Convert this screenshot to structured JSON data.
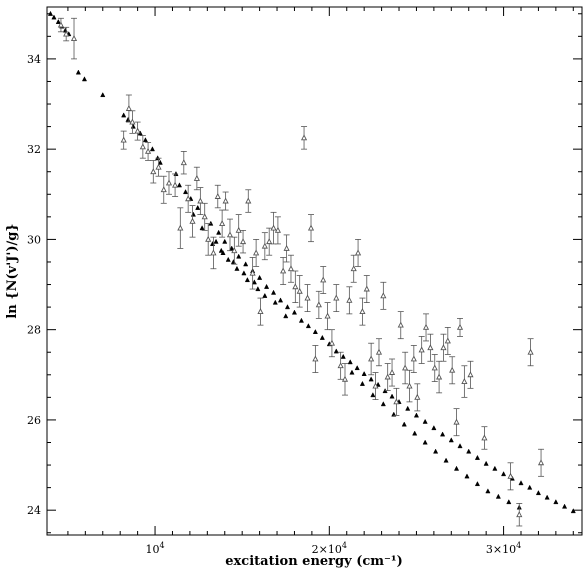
{
  "chart_data": {
    "type": "scatter",
    "title": "",
    "xlabel": "excitation energy (cm⁻¹)",
    "ylabel": "ln {N(v'J')/g}",
    "xlim": [
      3800,
      34500
    ],
    "ylim": [
      23.45,
      35.15
    ],
    "grid": false,
    "x_ticks": [
      {
        "value": 10000,
        "base": "10",
        "exp": "4"
      },
      {
        "value": 20000,
        "base": "2×10",
        "exp": "4"
      },
      {
        "value": 30000,
        "base": "3×10",
        "exp": "4"
      }
    ],
    "y_ticks": [
      {
        "value": 24,
        "label": "24"
      },
      {
        "value": 26,
        "label": "26"
      },
      {
        "value": 28,
        "label": "28"
      },
      {
        "value": 30,
        "label": "30"
      },
      {
        "value": 32,
        "label": "32"
      },
      {
        "value": 34,
        "label": "34"
      }
    ],
    "series": [
      {
        "marker": "filled-triangle",
        "color": "#000000",
        "points": [
          [
            4000,
            35.0
          ],
          [
            4200,
            34.92
          ],
          [
            4450,
            34.82
          ],
          [
            4650,
            34.72
          ],
          [
            4850,
            34.63
          ],
          [
            5050,
            34.55
          ],
          [
            5600,
            33.7
          ],
          [
            5950,
            33.55
          ],
          [
            7000,
            33.2
          ],
          [
            8200,
            32.75
          ],
          [
            8450,
            32.65
          ],
          [
            8750,
            32.5
          ],
          [
            9150,
            32.35
          ],
          [
            9450,
            32.2
          ],
          [
            9850,
            32.0
          ],
          [
            10150,
            31.8
          ],
          [
            11400,
            31.2
          ],
          [
            11750,
            31.05
          ],
          [
            12050,
            30.9
          ],
          [
            12450,
            30.7
          ],
          [
            12850,
            30.5
          ],
          [
            13200,
            30.35
          ],
          [
            13650,
            30.15
          ],
          [
            14000,
            29.95
          ],
          [
            14400,
            29.8
          ],
          [
            14800,
            29.62
          ],
          [
            15200,
            29.45
          ],
          [
            15600,
            29.3
          ],
          [
            16000,
            29.15
          ],
          [
            16400,
            28.95
          ],
          [
            16800,
            28.82
          ],
          [
            17200,
            28.65
          ],
          [
            17600,
            28.5
          ],
          [
            18000,
            28.38
          ],
          [
            18400,
            28.2
          ],
          [
            18800,
            28.08
          ],
          [
            19200,
            27.95
          ],
          [
            19600,
            27.82
          ],
          [
            20000,
            27.68
          ],
          [
            20400,
            27.52
          ],
          [
            20800,
            27.4
          ],
          [
            21200,
            27.28
          ],
          [
            21600,
            27.15
          ],
          [
            22000,
            27.02
          ],
          [
            22400,
            26.9
          ],
          [
            22800,
            26.78
          ],
          [
            23200,
            26.64
          ],
          [
            23600,
            26.52
          ],
          [
            24000,
            26.4
          ],
          [
            24500,
            26.25
          ],
          [
            25000,
            26.1
          ],
          [
            25500,
            25.96
          ],
          [
            26000,
            25.82
          ],
          [
            26500,
            25.68
          ],
          [
            27000,
            25.55
          ],
          [
            27500,
            25.42
          ],
          [
            28000,
            25.3
          ],
          [
            28500,
            25.16
          ],
          [
            29000,
            25.03
          ],
          [
            29500,
            24.92
          ],
          [
            30000,
            24.8
          ],
          [
            30500,
            24.7
          ],
          [
            31000,
            24.6
          ],
          [
            31500,
            24.5
          ],
          [
            32000,
            24.38
          ],
          [
            32500,
            24.28
          ],
          [
            33000,
            24.18
          ],
          [
            33500,
            24.08
          ],
          [
            34000,
            23.98
          ],
          [
            10300,
            31.7
          ],
          [
            11200,
            31.45
          ],
          [
            12200,
            30.55
          ],
          [
            12700,
            30.25
          ],
          [
            13300,
            29.9
          ],
          [
            13900,
            29.7
          ],
          [
            14500,
            29.5
          ],
          [
            15100,
            29.25
          ],
          [
            15700,
            29.05
          ],
          [
            16300,
            28.75
          ],
          [
            16900,
            28.6
          ],
          [
            17500,
            28.3
          ],
          [
            21300,
            27.05
          ],
          [
            21900,
            26.8
          ],
          [
            22500,
            26.55
          ],
          [
            23100,
            26.35
          ],
          [
            23700,
            26.12
          ],
          [
            24300,
            25.9
          ],
          [
            24900,
            25.7
          ],
          [
            25500,
            25.5
          ],
          [
            26100,
            25.3
          ],
          [
            26700,
            25.1
          ],
          [
            27300,
            24.92
          ],
          [
            27900,
            24.75
          ],
          [
            28500,
            24.58
          ],
          [
            29100,
            24.42
          ],
          [
            29700,
            24.3
          ],
          [
            30300,
            24.18
          ],
          [
            30900,
            24.06
          ],
          [
            13500,
            29.95
          ],
          [
            13800,
            29.75
          ],
          [
            14200,
            29.55
          ],
          [
            14700,
            29.35
          ],
          [
            15300,
            29.1
          ],
          [
            15900,
            28.9
          ]
        ]
      },
      {
        "marker": "open-triangle",
        "color": "#555555",
        "points": [
          [
            4600,
            34.75,
            0.15
          ],
          [
            4900,
            34.55,
            0.15
          ],
          [
            5350,
            34.45,
            0.45
          ],
          [
            8200,
            32.2,
            0.2
          ],
          [
            8500,
            32.9,
            0.3
          ],
          [
            8700,
            32.6,
            0.25
          ],
          [
            9000,
            32.4,
            0.2
          ],
          [
            9300,
            32.05,
            0.25
          ],
          [
            9600,
            31.95,
            0.2
          ],
          [
            9900,
            31.5,
            0.25
          ],
          [
            10200,
            31.6,
            0.2
          ],
          [
            10500,
            31.1,
            0.3
          ],
          [
            10800,
            31.25,
            0.25
          ],
          [
            11150,
            31.2,
            0.25
          ],
          [
            11450,
            30.25,
            0.45
          ],
          [
            11650,
            31.7,
            0.25
          ],
          [
            11900,
            30.9,
            0.3
          ],
          [
            12150,
            30.4,
            0.35
          ],
          [
            12400,
            31.35,
            0.25
          ],
          [
            12600,
            30.85,
            0.3
          ],
          [
            12850,
            30.5,
            0.3
          ],
          [
            13050,
            30.0,
            0.35
          ],
          [
            13350,
            29.7,
            0.35
          ],
          [
            13600,
            30.95,
            0.25
          ],
          [
            13850,
            30.35,
            0.3
          ],
          [
            14050,
            30.85,
            0.2
          ],
          [
            14300,
            30.1,
            0.35
          ],
          [
            14550,
            29.75,
            0.3
          ],
          [
            14800,
            30.2,
            0.35
          ],
          [
            15050,
            29.95,
            0.25
          ],
          [
            15350,
            30.85,
            0.25
          ],
          [
            15600,
            29.25,
            0.35
          ],
          [
            15800,
            29.7,
            0.3
          ],
          [
            16050,
            28.4,
            0.3
          ],
          [
            16300,
            29.85,
            0.3
          ],
          [
            16550,
            29.95,
            0.3
          ],
          [
            16800,
            30.25,
            0.35
          ],
          [
            17050,
            30.2,
            0.3
          ],
          [
            17350,
            29.3,
            0.3
          ],
          [
            17550,
            29.8,
            0.3
          ],
          [
            17800,
            29.35,
            0.3
          ],
          [
            18050,
            28.95,
            0.35
          ],
          [
            18300,
            28.85,
            0.35
          ],
          [
            18550,
            32.25,
            0.25
          ],
          [
            18750,
            28.7,
            0.3
          ],
          [
            18950,
            30.25,
            0.3
          ],
          [
            19200,
            27.35,
            0.3
          ],
          [
            19400,
            28.55,
            0.3
          ],
          [
            19650,
            29.1,
            0.3
          ],
          [
            19900,
            28.3,
            0.3
          ],
          [
            20150,
            27.7,
            0.3
          ],
          [
            20400,
            28.7,
            0.3
          ],
          [
            20650,
            27.2,
            0.3
          ],
          [
            20900,
            26.9,
            0.35
          ],
          [
            21150,
            28.65,
            0.3
          ],
          [
            21400,
            29.35,
            0.3
          ],
          [
            21650,
            29.7,
            0.3
          ],
          [
            21900,
            28.4,
            0.3
          ],
          [
            22150,
            28.9,
            0.3
          ],
          [
            22400,
            27.35,
            0.35
          ],
          [
            22650,
            26.75,
            0.3
          ],
          [
            22850,
            27.5,
            0.3
          ],
          [
            23100,
            28.75,
            0.3
          ],
          [
            23350,
            26.95,
            0.3
          ],
          [
            23600,
            27.05,
            0.3
          ],
          [
            23850,
            26.4,
            0.3
          ],
          [
            24100,
            28.1,
            0.3
          ],
          [
            24350,
            27.15,
            0.35
          ],
          [
            24600,
            26.75,
            0.35
          ],
          [
            24850,
            27.35,
            0.3
          ],
          [
            25050,
            26.5,
            0.3
          ],
          [
            25300,
            27.55,
            0.3
          ],
          [
            25550,
            28.05,
            0.3
          ],
          [
            25800,
            27.6,
            0.3
          ],
          [
            26050,
            27.15,
            0.3
          ],
          [
            26300,
            26.95,
            0.35
          ],
          [
            26550,
            27.6,
            0.3
          ],
          [
            26800,
            27.75,
            0.3
          ],
          [
            27050,
            27.1,
            0.3
          ],
          [
            27300,
            25.95,
            0.3
          ],
          [
            27500,
            28.05,
            0.2
          ],
          [
            27750,
            26.85,
            0.35
          ],
          [
            28100,
            27.0,
            0.3
          ],
          [
            28900,
            25.6,
            0.25
          ],
          [
            30400,
            24.75,
            0.3
          ],
          [
            30900,
            23.9,
            0.25
          ],
          [
            31550,
            27.5,
            0.3
          ],
          [
            32150,
            25.05,
            0.3
          ]
        ]
      }
    ]
  }
}
